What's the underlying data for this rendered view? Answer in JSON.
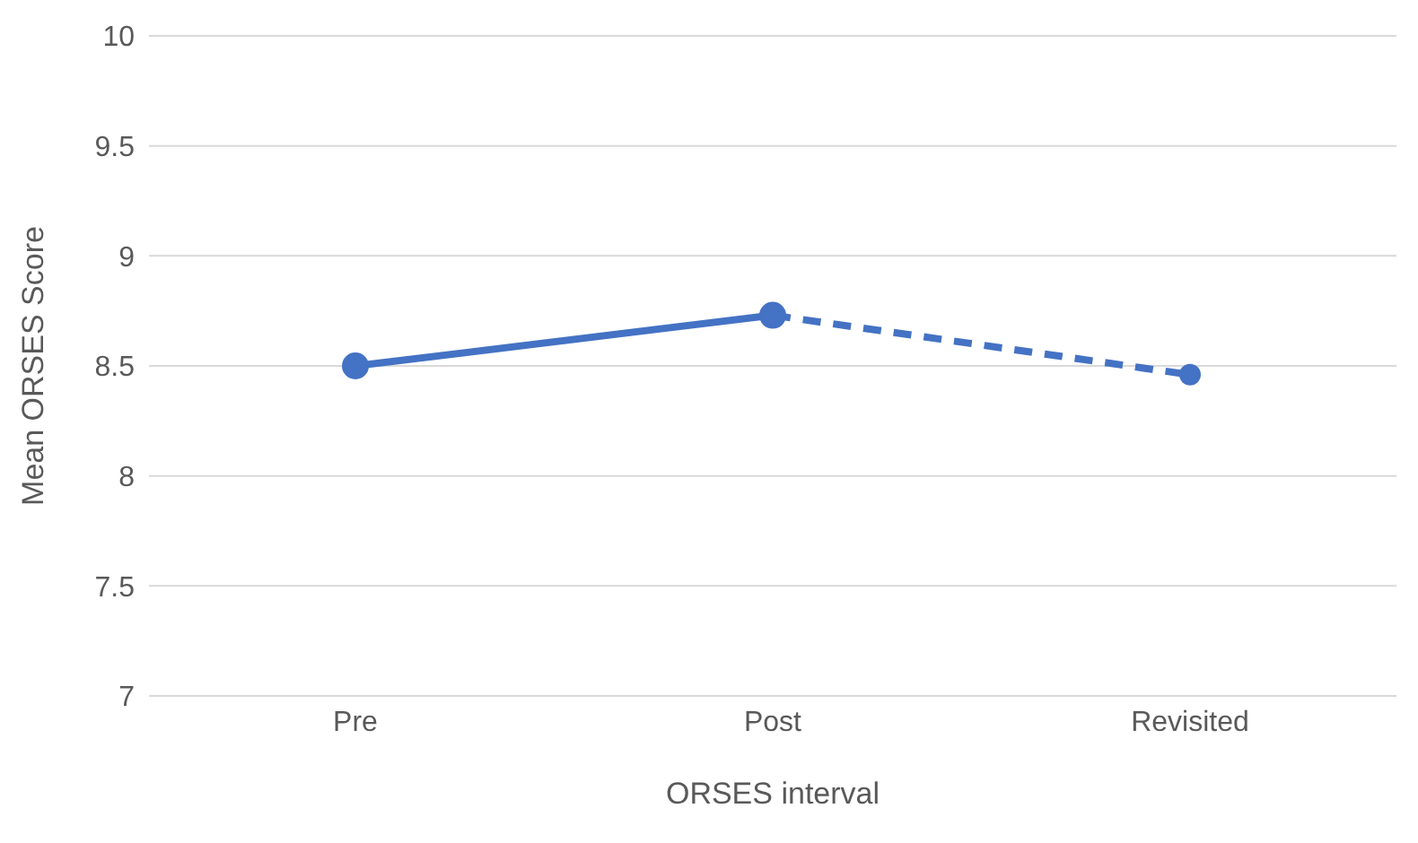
{
  "chart_data": {
    "type": "line",
    "xlabel": "ORSES interval",
    "ylabel": "Mean ORSES Score",
    "categories": [
      "Pre",
      "Post",
      "Revisited"
    ],
    "series": [
      {
        "color": "#4472c4",
        "values": [
          8.5,
          8.73,
          null
        ],
        "line_style": "solid"
      },
      {
        "color": "#4472c4",
        "values": [
          null,
          8.73,
          8.46
        ],
        "line_style": "dashed"
      }
    ],
    "ylim": [
      7,
      10
    ],
    "yticks": [
      7,
      7.5,
      8,
      8.5,
      9,
      9.5,
      10
    ],
    "grid": "y",
    "marker": "circle",
    "legend": false
  }
}
